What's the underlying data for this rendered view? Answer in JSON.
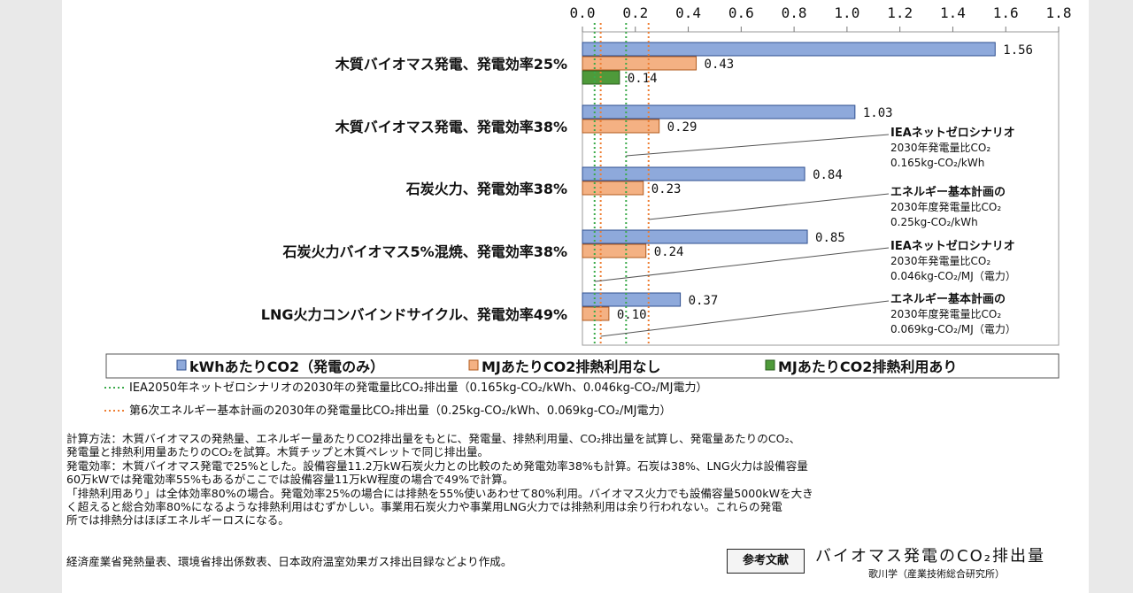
{
  "chart_data": {
    "type": "bar",
    "orientation": "horizontal",
    "title": "バイオマス発電のCO₂排出量",
    "xlim": [
      0,
      1.8
    ],
    "x_ticks": [
      "0.0",
      "0.2",
      "0.4",
      "0.6",
      "0.8",
      "1.0",
      "1.2",
      "1.4",
      "1.6",
      "1.8"
    ],
    "tick_values": [
      0,
      0.2,
      0.4,
      0.6,
      0.8,
      1.0,
      1.2,
      1.4,
      1.6,
      1.8
    ],
    "categories": [
      "木質バイオマス発電、発電効率25%",
      "木質バイオマス発電、発電効率38%",
      "石炭火力、発電効率38%",
      "石炭火力バイオマス5%混焼、発電効率38%",
      "LNG火力コンバインドサイクル、発電効率49%"
    ],
    "series": [
      {
        "name": "kWhあたりCO2（発電のみ）",
        "color": "#8EA9DB",
        "border": "#2F4F8F",
        "values": [
          1.56,
          1.03,
          0.84,
          0.85,
          0.37
        ],
        "labels": [
          "1.56",
          "1.03",
          "0.84",
          "0.85",
          "0.37"
        ]
      },
      {
        "name": "MJあたりCO2排熱利用なし",
        "color": "#F4B183",
        "border": "#B05A1E",
        "values": [
          0.43,
          0.29,
          0.23,
          0.24,
          0.1
        ],
        "labels": [
          "0.43",
          "0.29",
          "0.23",
          "0.24",
          "0.10"
        ]
      },
      {
        "name": "MJあたりCO2排熱利用あり",
        "color": "#4E9A3A",
        "border": "#2A5E1E",
        "values": [
          0.14,
          null,
          null,
          null,
          null
        ],
        "labels": [
          "0.14",
          null,
          null,
          null,
          null
        ]
      }
    ],
    "reference_lines": [
      {
        "legend_text": "IEA2050年ネットゼロシナリオの2030年の発電量比CO₂排出量（0.165kg-CO₂/kWh、0.046kg-CO₂/MJ電力）",
        "color": "#3BAA4A",
        "values": [
          0.165,
          0.046
        ]
      },
      {
        "legend_text": "第6次エネルギー基本計画の2030年の発電量比CO₂排出量（0.25kg-CO₂/kWh、0.069kg-CO₂/MJ電力）",
        "color": "#EE7D31",
        "values": [
          0.25,
          0.069
        ]
      }
    ],
    "annotations": [
      {
        "lines": [
          "IEAネットゼロシナリオ",
          "2030年発電量比CO₂",
          "0.165kg-CO₂/kWh"
        ],
        "points_to": 0.165
      },
      {
        "lines": [
          "エネルギー基本計画の",
          "2030年度発電量比CO₂",
          "0.25kg-CO₂/kWh"
        ],
        "points_to": 0.25
      },
      {
        "lines": [
          "IEAネットゼロシナリオ",
          "2030年発電量比CO₂",
          "0.046kg-CO₂/MJ（電力）"
        ],
        "points_to": 0.046
      },
      {
        "lines": [
          "エネルギー基本計画の",
          "2030年度発電量比CO₂",
          "0.069kg-CO₂/MJ（電力）"
        ],
        "points_to": 0.069
      }
    ]
  },
  "notes": [
    "計算方法：木質バイオマスの発熱量、エネルギー量あたりCO2排出量をもとに、発電量、排熱利用量、CO₂排出量を試算し、発電量あたりのCO₂、",
    "発電量と排熱利用量あたりのCO₂を試算。木質チップと木質ペレットで同じ排出量。",
    "発電効率：木質バイオマス発電で25%とした。設備容量11.2万kW石炭火力との比較のため発電効率38%も計算。石炭は38%、LNG火力は設備容量",
    "60万kWでは発電効率55%もあるがここでは設備容量11万kW程度の場合で49%で計算。",
    "「排熱利用あり」は全体効率80%の場合。発電効率25%の場合には排熱を55%使いあわせて80%利用。バイオマス火力でも設備容量5000kWを大き",
    "く超えると総合効率80%になるような排熱利用はむずかしい。事業用石炭火力や事業用LNG火力では排熱利用は余り行われない。これらの発電",
    "所では排熱分はほぼエネルギーロスになる。"
  ],
  "footer": {
    "sources": "経済産業省発熱量表、環境省排出係数表、日本政府温室効果ガス排出目録などより作成。",
    "reference_badge": "参考文献",
    "slide_title": "バイオマス発電のCO₂排出量",
    "author": "歌川学（産業技術総合研究所）"
  }
}
